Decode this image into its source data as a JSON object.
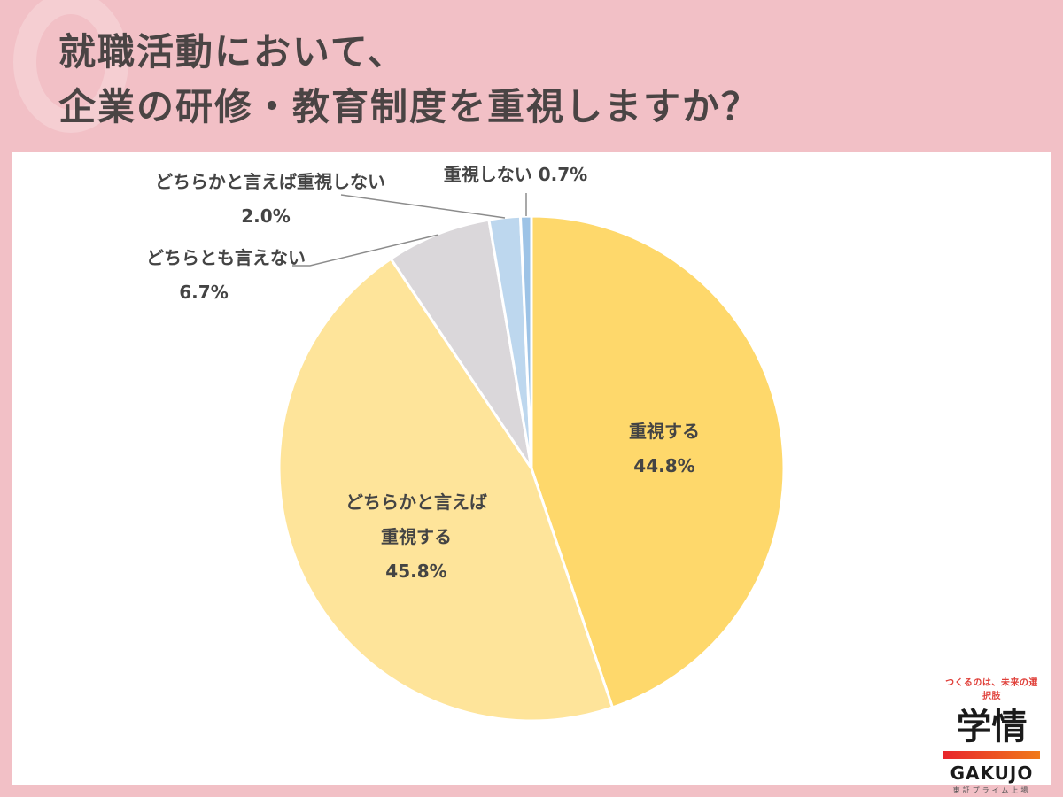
{
  "header": {
    "title_line1": "就職活動において、",
    "title_line2": "企業の研修・教育制度を重視しますか？"
  },
  "chart_data": {
    "type": "pie",
    "title": "就職活動において、企業の研修・教育制度を重視しますか？",
    "start_angle": "12 o'clock",
    "direction": "clockwise",
    "categories": [
      "重視する",
      "どちらかと言えば重視する",
      "どちらとも言えない",
      "どちらかと言えば重視しない",
      "重視しない"
    ],
    "values": [
      44.8,
      45.8,
      6.7,
      2.0,
      0.7
    ],
    "unit": "%",
    "colors": [
      "#fed86b",
      "#fee49a",
      "#dad7da",
      "#bdd7ee",
      "#9dc3e6"
    ],
    "labels": [
      {
        "lines": [
          "重視する",
          "44.8%"
        ]
      },
      {
        "lines": [
          "どちらかと言えば",
          "重視する",
          "45.8%"
        ]
      },
      {
        "lines": [
          "どちらとも言えない",
          "6.7%"
        ]
      },
      {
        "lines": [
          "どちらかと言えば重視しない",
          "2.0%"
        ]
      },
      {
        "lines": [
          "重視しない 0.7%"
        ]
      }
    ],
    "legend": "none (data labels)"
  },
  "logo": {
    "tagline": "つくるのは、未来の選択肢",
    "name_kanji": "学情",
    "name_en": "GAKUJO",
    "subtitle": "東証プライム上場"
  }
}
